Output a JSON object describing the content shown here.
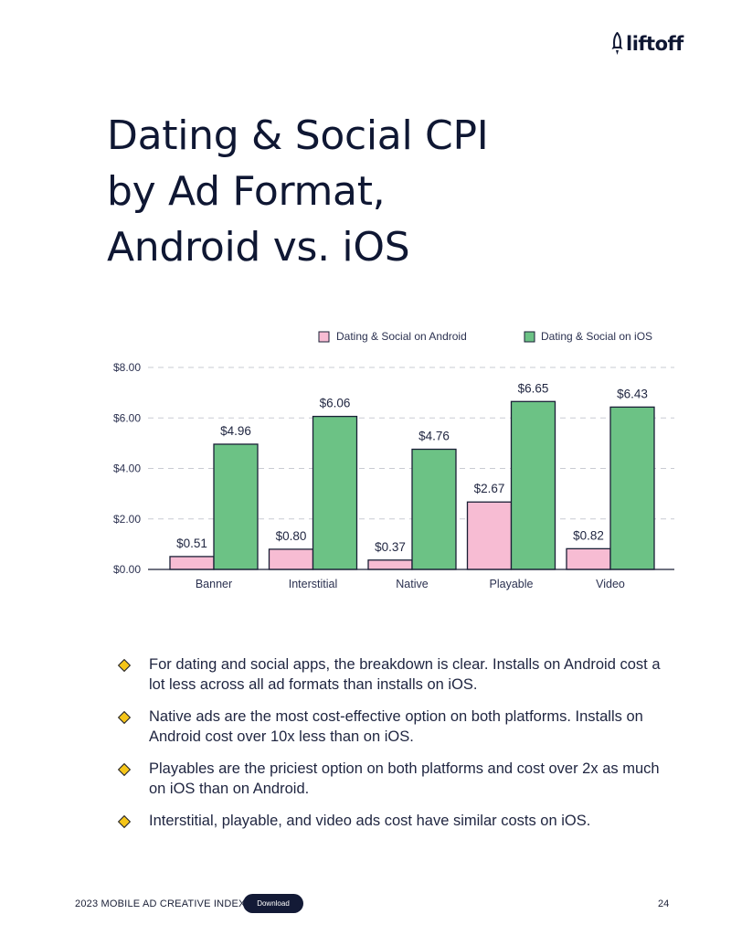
{
  "brand": {
    "logo_text": "liftoff"
  },
  "title_lines": [
    "Dating & Social CPI",
    "by Ad Format,",
    "Android vs. iOS"
  ],
  "colors": {
    "android": "#f7bcd3",
    "ios": "#6cc285",
    "text": "#0f1733",
    "bullet": "#f5c518"
  },
  "chart_data": {
    "type": "bar",
    "categories": [
      "Banner",
      "Interstitial",
      "Native",
      "Playable",
      "Video"
    ],
    "series": [
      {
        "name": "Dating & Social on Android",
        "values": [
          0.51,
          0.8,
          0.37,
          2.67,
          0.82
        ],
        "labels": [
          "$0.51",
          "$0.80",
          "$0.37",
          "$2.67",
          "$0.82"
        ]
      },
      {
        "name": "Dating & Social on iOS",
        "values": [
          4.96,
          6.06,
          4.76,
          6.65,
          6.43
        ],
        "labels": [
          "$4.96",
          "$6.06",
          "$4.76",
          "$6.65",
          "$6.43"
        ]
      }
    ],
    "yticks": [
      0,
      2,
      4,
      6,
      8
    ],
    "ytick_labels": [
      "$0.00",
      "$2.00",
      "$4.00",
      "$6.00",
      "$8.00"
    ],
    "ylim": [
      0,
      8
    ],
    "legend_position": "top-right",
    "grid": true
  },
  "bullets": [
    "For dating and social apps, the breakdown is clear. Installs on Android cost a lot less across all ad formats than installs on iOS.",
    "Native ads are the most cost-effective option on both platforms. Installs on Android cost over 10x less than on iOS.",
    "Playables are the priciest option on both platforms and cost over 2x as much on iOS than on Android.",
    "Interstitial, playable, and video ads cost have similar costs on iOS."
  ],
  "footer": {
    "report_title": "2023 MOBILE AD CREATIVE INDEX",
    "download_label": "Download",
    "page_number": "24"
  }
}
